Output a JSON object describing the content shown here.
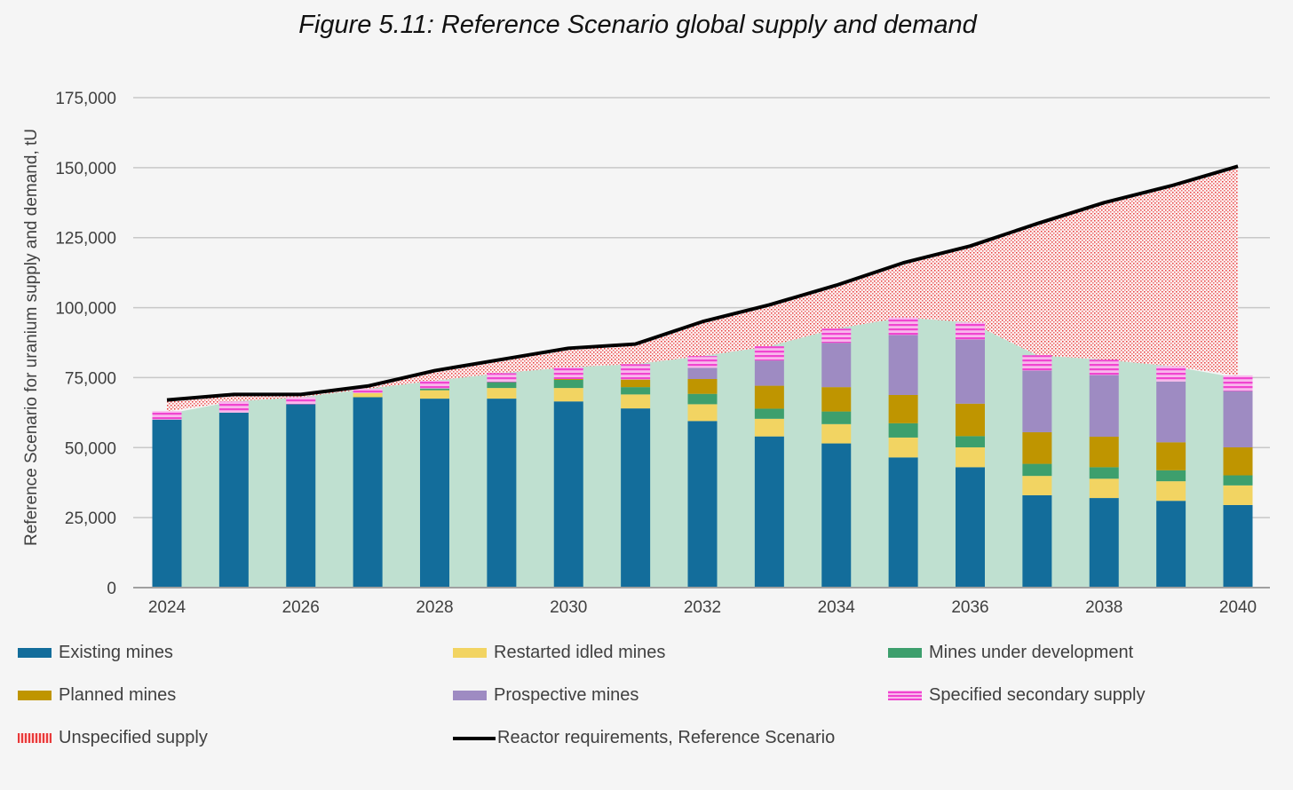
{
  "chart_data": {
    "type": "bar",
    "stacked": true,
    "title": "Figure 5.11: Reference Scenario global supply and demand",
    "xlabel": "",
    "ylabel": "Reference Scenario for uranium supply and demand, tU",
    "ylim": [
      0,
      175000
    ],
    "yticks": [
      "0",
      "25,000",
      "50,000",
      "75,000",
      "100,000",
      "125,000",
      "150,000",
      "175,000"
    ],
    "ytick_values": [
      0,
      25000,
      50000,
      75000,
      100000,
      125000,
      150000,
      175000
    ],
    "categories": [
      2024,
      2025,
      2026,
      2027,
      2028,
      2029,
      2030,
      2031,
      2032,
      2033,
      2034,
      2035,
      2036,
      2037,
      2038,
      2039,
      2040
    ],
    "xtick_labels": [
      "2024",
      "2026",
      "2028",
      "2030",
      "2032",
      "2034",
      "2036",
      "2038",
      "2040"
    ],
    "grid": "horizontal",
    "legend_position": "bottom",
    "series": [
      {
        "name": "Existing mines",
        "color": "#136d9b",
        "values": [
          60000,
          62500,
          65500,
          68000,
          67500,
          67500,
          66500,
          64000,
          59500,
          54000,
          51500,
          46500,
          43000,
          33000,
          32000,
          31000,
          29500
        ]
      },
      {
        "name": "Restarted idled mines",
        "color": "#f2d462",
        "values": [
          0,
          0,
          0,
          1500,
          3000,
          3800,
          4800,
          5000,
          6000,
          6300,
          6900,
          7100,
          7100,
          6900,
          6900,
          7000,
          7000
        ]
      },
      {
        "name": "Mines under development",
        "color": "#3d9f6d",
        "values": [
          0,
          0,
          0,
          0,
          600,
          2100,
          2900,
          2600,
          3700,
          3600,
          4500,
          5100,
          4000,
          4300,
          4100,
          3900,
          3600
        ]
      },
      {
        "name": "Planned mines",
        "color": "#bf9500",
        "values": [
          0,
          0,
          0,
          0,
          0,
          0,
          300,
          2700,
          5300,
          8200,
          8700,
          10100,
          11600,
          11300,
          10900,
          10000,
          10000
        ]
      },
      {
        "name": "Prospective mines",
        "color": "#9e8bc2",
        "values": [
          0,
          0,
          0,
          0,
          0,
          0,
          0,
          0,
          4000,
          9000,
          15800,
          21400,
          22900,
          22000,
          22000,
          21700,
          20100
        ]
      },
      {
        "name": "Specified secondary supply",
        "color": "#f06ad8",
        "pattern": "horizontal-stripes",
        "values": [
          3000,
          4000,
          2500,
          1500,
          2800,
          3200,
          4200,
          5500,
          4200,
          5100,
          5100,
          6300,
          6100,
          5500,
          5500,
          5500,
          5600
        ]
      },
      {
        "name": "Unspecified supply",
        "color": "#e83a3a",
        "pattern": "dots",
        "type": "area",
        "note_values_are_gap_to_requirements": true
      },
      {
        "name": "Reactor requirements, Reference Scenario",
        "type": "line",
        "color": "#000000",
        "values": [
          67000,
          69000,
          69000,
          72000,
          77500,
          81500,
          85500,
          87000,
          95000,
          101000,
          108000,
          116000,
          122000,
          130000,
          137500,
          143500,
          150500
        ]
      }
    ],
    "background_area_color": "#bfe0d0"
  }
}
